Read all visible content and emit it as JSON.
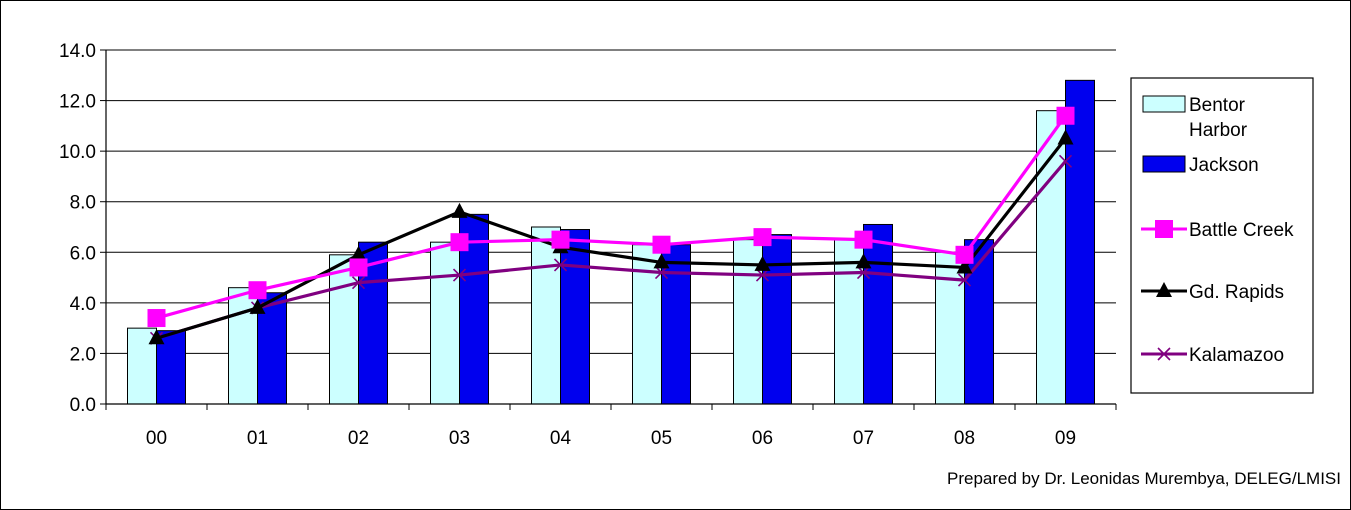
{
  "chart_data": {
    "type": "bar",
    "categories": [
      "00",
      "01",
      "02",
      "03",
      "04",
      "05",
      "06",
      "07",
      "08",
      "09"
    ],
    "ylim": [
      0,
      14
    ],
    "yticks": [
      "0.0",
      "2.0",
      "4.0",
      "6.0",
      "8.0",
      "10.0",
      "12.0",
      "14.0"
    ],
    "ytick_values": [
      0,
      2,
      4,
      6,
      8,
      10,
      12,
      14
    ],
    "grid": true,
    "legend_position": "right",
    "series": [
      {
        "name": "Bentor Harbor",
        "name_lines": [
          "Bentor",
          "Harbor"
        ],
        "kind": "bar",
        "color": "#CCFFFF",
        "values": [
          3.0,
          4.6,
          5.9,
          6.4,
          7.0,
          6.3,
          6.5,
          6.5,
          6.0,
          11.6
        ]
      },
      {
        "name": "Jackson",
        "kind": "bar",
        "color": "#0000EE",
        "values": [
          2.9,
          4.4,
          6.4,
          7.5,
          6.9,
          6.3,
          6.7,
          7.1,
          6.5,
          12.8
        ]
      },
      {
        "name": "Battle Creek",
        "kind": "line",
        "marker": "square",
        "color": "#FF00FF",
        "values": [
          3.4,
          4.5,
          5.4,
          6.4,
          6.5,
          6.3,
          6.6,
          6.5,
          5.9,
          11.4
        ]
      },
      {
        "name": "Gd. Rapids",
        "kind": "line",
        "marker": "triangle",
        "color": "#000000",
        "values": [
          2.6,
          3.8,
          5.9,
          7.6,
          6.2,
          5.6,
          5.5,
          5.6,
          5.4,
          10.5
        ]
      },
      {
        "name": "Kalamazoo",
        "kind": "line",
        "marker": "x",
        "color": "#800080",
        "values": [
          2.6,
          3.8,
          4.8,
          5.1,
          5.5,
          5.2,
          5.1,
          5.2,
          4.9,
          9.6
        ]
      }
    ]
  },
  "credit": "Prepared by Dr. Leonidas Murembya, DELEG/LMISI"
}
